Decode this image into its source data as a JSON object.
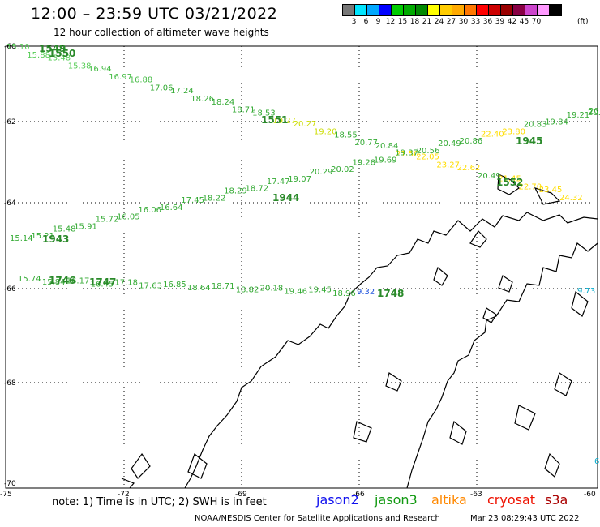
{
  "header": {
    "title": "12:00 – 23:59 UTC 03/21/2022",
    "subtitle": "12 hour collection of altimeter wave heights"
  },
  "legend": {
    "colors": [
      "#777777",
      "#00e5ff",
      "#00a8ff",
      "#0000ff",
      "#00cc00",
      "#00aa00",
      "#008800",
      "#ffff00",
      "#ffcc00",
      "#ffaa00",
      "#ff7700",
      "#ff0000",
      "#cc0000",
      "#990000",
      "#880044",
      "#cc44cc",
      "#ff99ff",
      "#000000"
    ],
    "labels": [
      "3",
      "6",
      "9",
      "12",
      "15",
      "18",
      "21",
      "24",
      "27",
      "30",
      "33",
      "36",
      "39",
      "42",
      "45",
      "70"
    ],
    "unit": "(ft)"
  },
  "axes": {
    "lat_labels": [
      "-60",
      "-62",
      "-64",
      "-66",
      "-68",
      "-70"
    ],
    "lon_labels": [
      "-75",
      "-72",
      "-69",
      "-66",
      "-63",
      "-60"
    ]
  },
  "tracks": [
    {
      "name": "track-a",
      "time_labels": [
        "1549",
        "1550",
        "1551"
      ],
      "points": [
        {
          "v": "15.10",
          "c": "#55cc55"
        },
        {
          "v": "15.88",
          "c": "#55cc55"
        },
        {
          "v": "15.48",
          "c": "#55cc55"
        },
        {
          "v": "15.38",
          "c": "#55cc55"
        },
        {
          "v": "16.94",
          "c": "#44bb44"
        },
        {
          "v": "16.97",
          "c": "#44bb44"
        },
        {
          "v": "16.88",
          "c": "#44bb44"
        },
        {
          "v": "17.06",
          "c": "#33aa33"
        },
        {
          "v": "17.24",
          "c": "#33aa33"
        },
        {
          "v": "18.26",
          "c": "#33aa33"
        },
        {
          "v": "18.24",
          "c": "#33aa33"
        },
        {
          "v": "18.71",
          "c": "#33aa33"
        },
        {
          "v": "18.53",
          "c": "#33aa33"
        },
        {
          "v": "19.27",
          "c": "#ccdd00"
        },
        {
          "v": "20.27",
          "c": "#ccdd00"
        },
        {
          "v": "19.20",
          "c": "#ccdd00"
        },
        {
          "v": "18.55",
          "c": "#33aa33"
        },
        {
          "v": "20.77",
          "c": "#33aa33"
        },
        {
          "v": "20.84",
          "c": "#33aa33"
        },
        {
          "v": "21.50",
          "c": "#ffdd00"
        },
        {
          "v": "22.05",
          "c": "#ffdd00"
        },
        {
          "v": "23.27",
          "c": "#ffdd00"
        },
        {
          "v": "22.62",
          "c": "#ffdd00"
        },
        {
          "v": "20.49",
          "c": "#33aa33"
        },
        {
          "v": "21.45",
          "c": "#ffdd00"
        },
        {
          "v": "22.70",
          "c": "#ffdd00"
        },
        {
          "v": "23.45",
          "c": "#ffdd00"
        },
        {
          "v": "24.32",
          "c": "#ffdd00"
        }
      ]
    },
    {
      "name": "track-b",
      "time_labels": [
        "1944",
        "1943"
      ],
      "points": [
        {
          "v": "15.14",
          "c": "#33aa33"
        },
        {
          "v": "15.21",
          "c": "#33aa33"
        },
        {
          "v": "15.48",
          "c": "#33aa33"
        },
        {
          "v": "15.91",
          "c": "#33aa33"
        },
        {
          "v": "15.72",
          "c": "#33aa33"
        },
        {
          "v": "16.05",
          "c": "#33aa33"
        },
        {
          "v": "16.06",
          "c": "#33aa33"
        },
        {
          "v": "16.64",
          "c": "#33aa33"
        },
        {
          "v": "17.45",
          "c": "#33aa33"
        },
        {
          "v": "18.22",
          "c": "#33aa33"
        },
        {
          "v": "18.29",
          "c": "#33aa33"
        },
        {
          "v": "18.72",
          "c": "#33aa33"
        },
        {
          "v": "17.47",
          "c": "#33aa33"
        },
        {
          "v": "19.07",
          "c": "#33aa33"
        },
        {
          "v": "20.29",
          "c": "#33aa33"
        },
        {
          "v": "20.02",
          "c": "#33aa33"
        },
        {
          "v": "19.28",
          "c": "#33aa33"
        },
        {
          "v": "19.69",
          "c": "#33aa33"
        },
        {
          "v": "19.37",
          "c": "#33aa33"
        },
        {
          "v": "20.56",
          "c": "#33aa33"
        },
        {
          "v": "20.49",
          "c": "#33aa33"
        },
        {
          "v": "20.86",
          "c": "#33aa33"
        },
        {
          "v": "22.40",
          "c": "#ffdd00"
        },
        {
          "v": "23.80",
          "c": "#ffdd00"
        },
        {
          "v": "20.83",
          "c": "#33aa33"
        },
        {
          "v": "19.84",
          "c": "#33aa33"
        },
        {
          "v": "19.21",
          "c": "#33aa33"
        },
        {
          "v": "20.10",
          "c": "#33aa33"
        }
      ]
    },
    {
      "name": "track-c",
      "time_labels": [
        "1746",
        "1747",
        "1748"
      ],
      "points": [
        {
          "v": "15.74",
          "c": "#33aa33"
        },
        {
          "v": "15.84",
          "c": "#33aa33"
        },
        {
          "v": "16.17",
          "c": "#33aa33"
        },
        {
          "v": "16.45",
          "c": "#33aa33"
        },
        {
          "v": "17.18",
          "c": "#33aa33"
        },
        {
          "v": "17.63",
          "c": "#33aa33"
        },
        {
          "v": "16.85",
          "c": "#33aa33"
        },
        {
          "v": "18.64",
          "c": "#33aa33"
        },
        {
          "v": "18.71",
          "c": "#33aa33"
        },
        {
          "v": "18.82",
          "c": "#33aa33"
        },
        {
          "v": "20.18",
          "c": "#33aa33"
        },
        {
          "v": "19.46",
          "c": "#33aa33"
        },
        {
          "v": "19.45",
          "c": "#33aa33"
        },
        {
          "v": "18.96",
          "c": "#33aa33"
        },
        {
          "v": "9.32",
          "c": "#2255dd"
        }
      ]
    }
  ],
  "extra_labels": [
    {
      "v": "1945",
      "c": "#2a8a2a"
    },
    {
      "v": "1552",
      "c": "#2a8a2a"
    },
    {
      "v": "9.73",
      "c": "#00aacc"
    },
    {
      "v": "6",
      "c": "#00aacc"
    },
    {
      "v": "20",
      "c": "#33aa33"
    }
  ],
  "footer": {
    "note": "note:  1) Time is in UTC;  2) SWH is in feet",
    "satellites": [
      {
        "name": "jason2",
        "color": "#1010ee"
      },
      {
        "name": "jason3",
        "color": "#119911"
      },
      {
        "name": "altika",
        "color": "#ff8800"
      },
      {
        "name": "cryosat",
        "color": "#ee1100"
      },
      {
        "name": "s3a",
        "color": "#aa0000"
      }
    ],
    "credit": "NOAA/NESDIS Center for Satellite Applications and Research",
    "timestamp": "Mar 23 08:29:43 UTC 2022"
  }
}
